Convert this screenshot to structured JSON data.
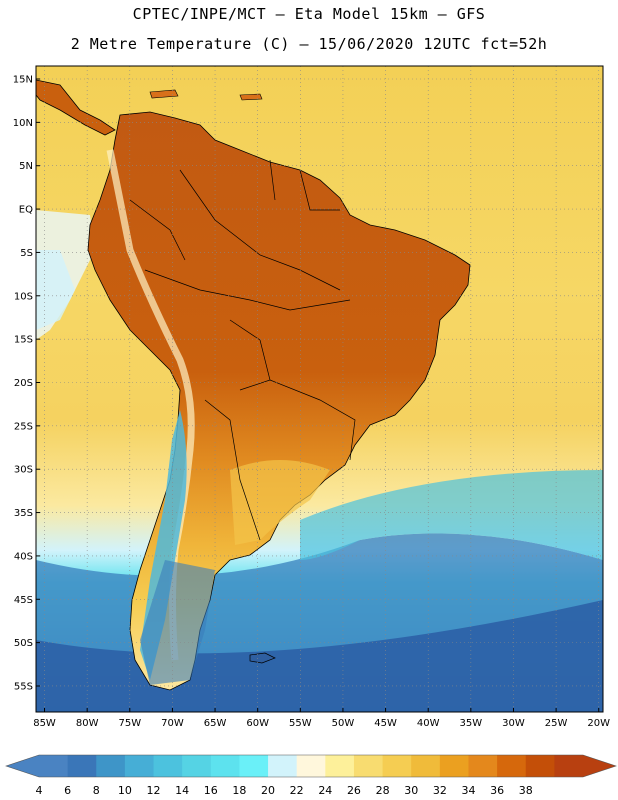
{
  "header": {
    "line1": "CPTEC/INPE/MCT –  Eta Model 15km – GFS",
    "line2": "2 Metre Temperature (C) – 15/06/2020 12UTC fct=52h"
  },
  "axes": {
    "lat_labels": [
      "15N",
      "10N",
      "5N",
      "EQ",
      "5S",
      "10S",
      "15S",
      "20S",
      "25S",
      "30S",
      "35S",
      "40S",
      "45S",
      "50S",
      "55S"
    ],
    "lat_values": [
      15,
      10,
      5,
      0,
      -5,
      -10,
      -15,
      -20,
      -25,
      -30,
      -35,
      -40,
      -45,
      -50,
      -55
    ],
    "lon_labels": [
      "85W",
      "80W",
      "75W",
      "70W",
      "65W",
      "60W",
      "55W",
      "50W",
      "45W",
      "40W",
      "35W",
      "30W",
      "25W",
      "20W"
    ],
    "lon_values": [
      -85,
      -80,
      -75,
      -70,
      -65,
      -60,
      -55,
      -50,
      -45,
      -40,
      -35,
      -30,
      -25,
      -20
    ],
    "lat_range": [
      -58,
      16.5
    ],
    "lon_range": [
      -86,
      -19.5
    ]
  },
  "colorbar": {
    "labels": [
      "4",
      "6",
      "8",
      "10",
      "12",
      "14",
      "16",
      "18",
      "20",
      "22",
      "24",
      "26",
      "28",
      "30",
      "32",
      "34",
      "36",
      "38"
    ],
    "colors": [
      "#4a83c2",
      "#3a76b8",
      "#3e95c8",
      "#46aed6",
      "#4cc2de",
      "#55d3e4",
      "#5de2ee",
      "#6af0f8",
      "#d2f3fb",
      "#fff7dc",
      "#fdf09a",
      "#f8dc70",
      "#f5cd52",
      "#f0bb3a",
      "#eba020",
      "#e4881c",
      "#d6680c",
      "#c44f08",
      "#b84010"
    ],
    "low_color": "#4a83c2",
    "high_color": "#b84010"
  }
}
